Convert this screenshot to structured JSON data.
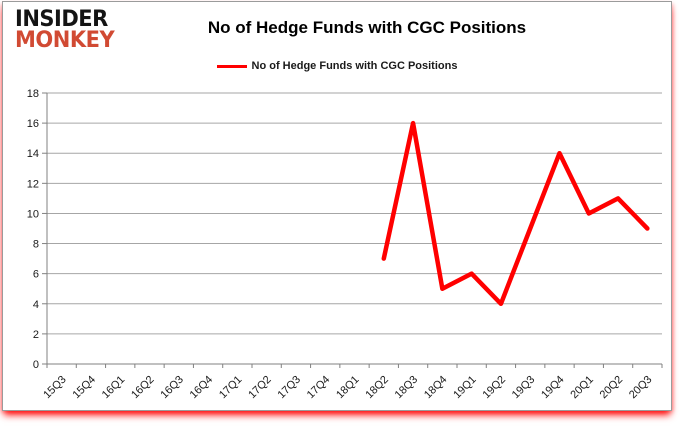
{
  "logo": {
    "line1": "INSIDER",
    "line2": "MONKEY",
    "line1_color": "#141414",
    "line2_color": "#d14a33"
  },
  "header": {
    "title": "No of Hedge Funds with CGC Positions"
  },
  "legend": {
    "label": "No of Hedge Funds with CGC Positions",
    "swatch_color": "#ff0000"
  },
  "chart_data": {
    "type": "line",
    "title": "No of Hedge Funds with CGC Positions",
    "categories": [
      "15Q3",
      "15Q4",
      "16Q1",
      "16Q2",
      "16Q3",
      "16Q4",
      "17Q1",
      "17Q2",
      "17Q3",
      "17Q4",
      "18Q1",
      "18Q2",
      "18Q3",
      "18Q4",
      "19Q1",
      "19Q2",
      "19Q3",
      "19Q4",
      "20Q1",
      "20Q2",
      "20Q3"
    ],
    "series": [
      {
        "name": "No of Hedge Funds with CGC Positions",
        "color": "#ff0000",
        "values": [
          null,
          null,
          null,
          null,
          null,
          null,
          null,
          null,
          null,
          null,
          null,
          7,
          16,
          5,
          6,
          4,
          9,
          14,
          10,
          11,
          9
        ]
      }
    ],
    "xlabel": "",
    "ylabel": "",
    "ylim": [
      0,
      18
    ],
    "ytick_step": 2,
    "grid": "horizontal",
    "legend_position": "top-center",
    "x_label_rotation_deg": -45,
    "colors": {
      "gridline": "#a6a6a6",
      "axis": "#808080",
      "tick_label": "#1a1a1a"
    }
  }
}
